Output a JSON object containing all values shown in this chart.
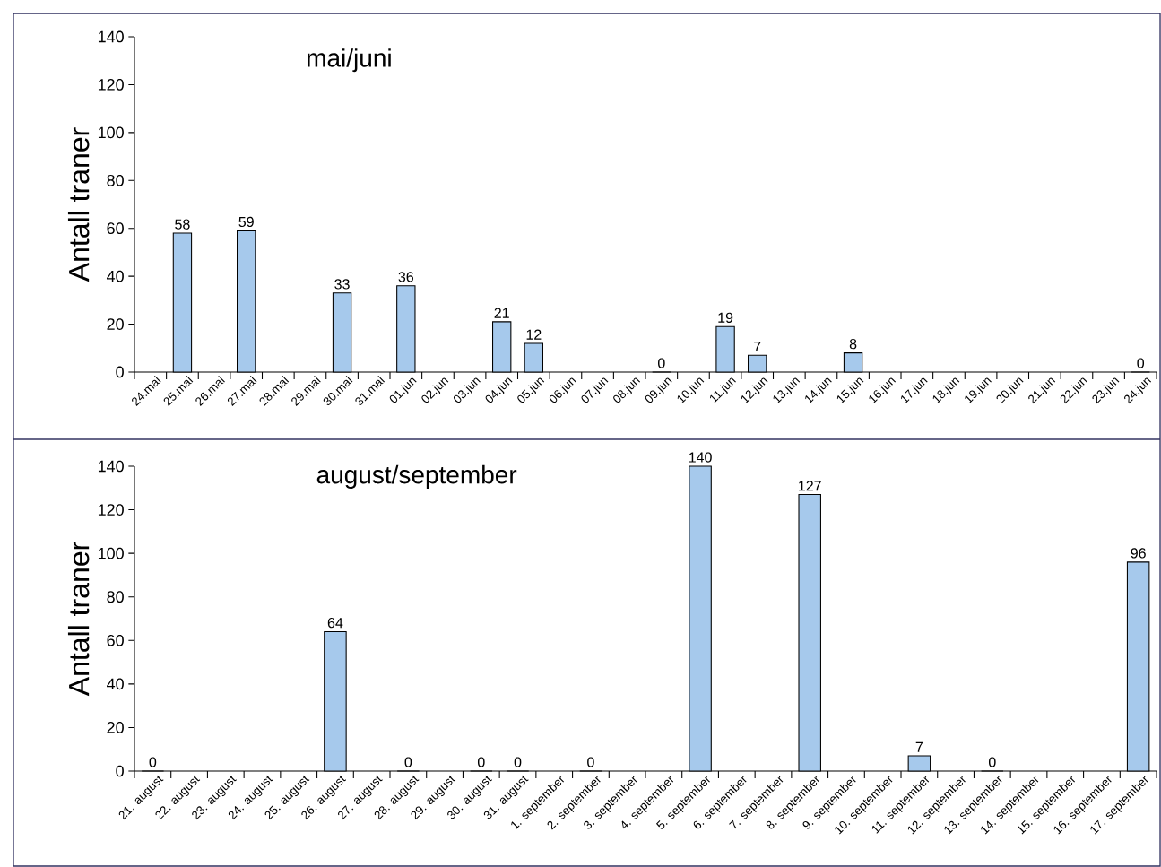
{
  "chart_data": [
    {
      "type": "bar",
      "title": "mai/juni",
      "ylabel": "Antall traner",
      "categories": [
        "24.mai",
        "25.mai",
        "26.mai",
        "27.mai",
        "28.mai",
        "29.mai",
        "30.mai",
        "31.mai",
        "01.jun",
        "02.jun",
        "03.jun",
        "04.jun",
        "05.jun",
        "06.jun",
        "07.jun",
        "08.jun",
        "09.jun",
        "10.jun",
        "11.jun",
        "12.jun",
        "13.jun",
        "14.jun",
        "15.jun",
        "16.jun",
        "17.jun",
        "18.jun",
        "19.jun",
        "20.jun",
        "21.jun",
        "22.jun",
        "23.jun",
        "24.jun"
      ],
      "values": [
        null,
        58,
        null,
        59,
        null,
        null,
        33,
        null,
        36,
        null,
        null,
        21,
        12,
        null,
        null,
        null,
        0,
        null,
        19,
        7,
        null,
        null,
        8,
        null,
        null,
        null,
        null,
        null,
        null,
        null,
        null,
        0
      ],
      "value_labels": [
        null,
        "58",
        null,
        "59",
        null,
        null,
        "33",
        null,
        "36",
        null,
        null,
        "21",
        "12",
        null,
        null,
        null,
        "0",
        null,
        "19",
        "7",
        null,
        null,
        "8",
        null,
        null,
        null,
        null,
        null,
        null,
        null,
        null,
        "0"
      ],
      "color": "#a6c9ec",
      "ylim": [
        0,
        140
      ],
      "yticks": [
        0,
        20,
        40,
        60,
        80,
        100,
        120,
        140
      ]
    },
    {
      "type": "bar",
      "title": "august/september",
      "ylabel": "Antall traner",
      "categories": [
        "21. august",
        "22. august",
        "23. august",
        "24. august",
        "25. august",
        "26. august",
        "27. august",
        "28. august",
        "29. august",
        "30. august",
        "31. august",
        "1. september",
        "2. september",
        "3. september",
        "4. september",
        "5. september",
        "6. september",
        "7. september",
        "8. september",
        "9. september",
        "10. september",
        "11. september",
        "12. september",
        "13. september",
        "14. september",
        "15. september",
        "16. september",
        "17. september"
      ],
      "values": [
        0,
        null,
        null,
        null,
        null,
        64,
        null,
        0,
        null,
        0,
        0,
        null,
        0,
        null,
        null,
        140,
        null,
        null,
        127,
        null,
        null,
        7,
        null,
        0,
        null,
        null,
        null,
        96
      ],
      "value_labels": [
        "0",
        null,
        null,
        null,
        null,
        "64",
        null,
        "0",
        null,
        "0",
        "0",
        null,
        "0",
        null,
        null,
        "140",
        null,
        null,
        "127",
        null,
        null,
        "7",
        null,
        "0",
        null,
        null,
        null,
        "96"
      ],
      "color": "#a6c9ec",
      "ylim": [
        0,
        140
      ],
      "yticks": [
        0,
        20,
        40,
        60,
        80,
        100,
        120,
        140
      ]
    }
  ]
}
